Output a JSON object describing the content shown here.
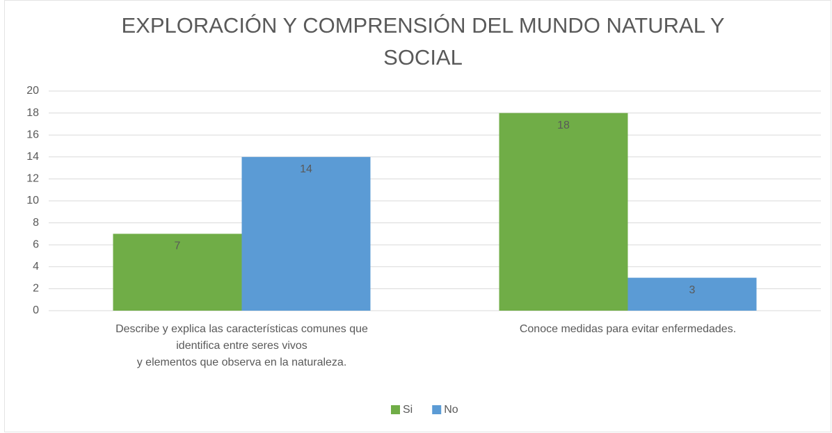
{
  "chart_data": {
    "type": "bar",
    "title": "EXPLORACIÓN Y COMPRENSIÓN DEL MUNDO NATURAL Y SOCIAL",
    "categories": [
      "Describe y explica las características comunes que\nidentifica entre seres vivos\ny elementos que observa en la naturaleza.",
      "Conoce medidas para evitar enfermedades."
    ],
    "series": [
      {
        "name": "Si",
        "color": "#70ad47",
        "values": [
          7,
          18
        ]
      },
      {
        "name": "No",
        "color": "#5b9bd5",
        "values": [
          14,
          3
        ]
      }
    ],
    "ylim": [
      0,
      20
    ],
    "yticks": [
      0,
      2,
      4,
      6,
      8,
      10,
      12,
      14,
      16,
      18,
      20
    ],
    "grid": true,
    "legend": "bottom"
  }
}
